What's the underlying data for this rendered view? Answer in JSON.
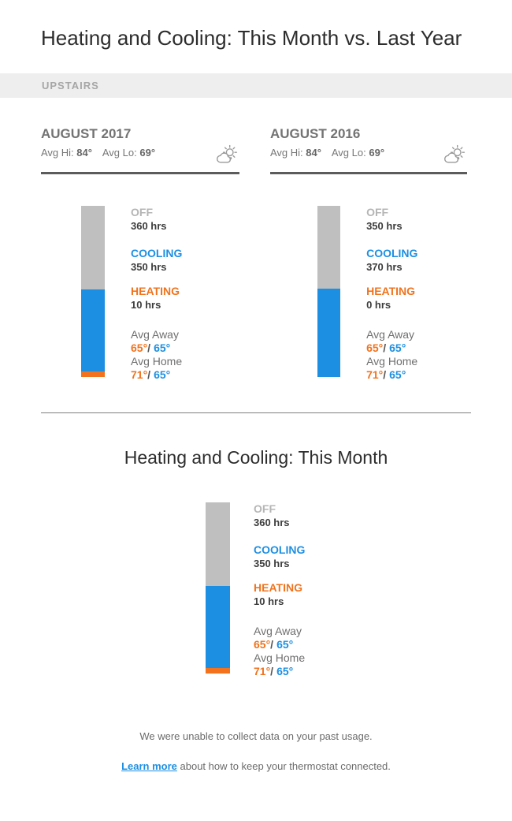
{
  "page": {
    "title": "Heating and Cooling: This Month vs. Last Year",
    "zone_label": "UPSTAIRS"
  },
  "colors": {
    "off": "#bfbfbf",
    "cooling": "#1d8fe2",
    "heating": "#f3721e",
    "link": "#1d8fe2"
  },
  "comparison": {
    "columns": [
      {
        "month": "AUGUST 2017",
        "avg_hi_label": "Avg Hi:",
        "avg_hi_value": "84°",
        "avg_lo_label": "Avg Lo:",
        "avg_lo_value": "69°",
        "weather_icon": "partly-cloudy-icon",
        "off_label": "OFF",
        "off_hours_text": "360 hrs",
        "cooling_label": "COOLING",
        "cooling_hours_text": "350 hrs",
        "heating_label": "HEATING",
        "heating_hours_text": "10 hrs",
        "avg_away_label": "Avg Away",
        "avg_away_heat": "65°",
        "avg_away_separator": "/",
        "avg_away_cool": "65°",
        "avg_home_label": "Avg Home",
        "avg_home_heat": "71°",
        "avg_home_separator": "/",
        "avg_home_cool": "65°"
      },
      {
        "month": "AUGUST 2016",
        "avg_hi_label": "Avg Hi:",
        "avg_hi_value": "84°",
        "avg_lo_label": "Avg Lo:",
        "avg_lo_value": "69°",
        "weather_icon": "partly-cloudy-icon",
        "off_label": "OFF",
        "off_hours_text": "350 hrs",
        "cooling_label": "COOLING",
        "cooling_hours_text": "370 hrs",
        "heating_label": "HEATING",
        "heating_hours_text": "0 hrs",
        "avg_away_label": "Avg Away",
        "avg_away_heat": "65°",
        "avg_away_separator": "/",
        "avg_away_cool": "65°",
        "avg_home_label": "Avg Home",
        "avg_home_heat": "71°",
        "avg_home_separator": "/",
        "avg_home_cool": "65°"
      }
    ]
  },
  "this_month": {
    "title": "Heating and Cooling: This Month",
    "off_label": "OFF",
    "off_hours_text": "360 hrs",
    "cooling_label": "COOLING",
    "cooling_hours_text": "350 hrs",
    "heating_label": "HEATING",
    "heating_hours_text": "10 hrs",
    "avg_away_label": "Avg Away",
    "avg_away_heat": "65°",
    "avg_away_separator": "/",
    "avg_away_cool": "65°",
    "avg_home_label": "Avg Home",
    "avg_home_heat": "71°",
    "avg_home_separator": "/",
    "avg_home_cool": "65°"
  },
  "footer": {
    "notice": "We were unable to collect data on your past usage.",
    "link_label": "Learn more",
    "link_tail": " about how to keep your thermostat connected."
  },
  "chart_data": [
    {
      "type": "bar",
      "stacked": true,
      "title": "AUGUST 2017",
      "zone": "UPSTAIRS",
      "units": "hours",
      "avg_outdoor_hi": 84,
      "avg_outdoor_lo": 69,
      "categories": [
        "OFF",
        "COOLING",
        "HEATING"
      ],
      "values": [
        360,
        350,
        10
      ],
      "hours": {
        "off": 360,
        "cooling": 350,
        "heating": 10
      },
      "avg_away_setpoints": {
        "heat": 65,
        "cool": 65
      },
      "avg_home_setpoints": {
        "heat": 71,
        "cool": 65
      }
    },
    {
      "type": "bar",
      "stacked": true,
      "title": "AUGUST 2016",
      "zone": "UPSTAIRS",
      "units": "hours",
      "avg_outdoor_hi": 84,
      "avg_outdoor_lo": 69,
      "categories": [
        "OFF",
        "COOLING",
        "HEATING"
      ],
      "values": [
        350,
        370,
        0
      ],
      "hours": {
        "off": 350,
        "cooling": 370,
        "heating": 0
      },
      "avg_away_setpoints": {
        "heat": 65,
        "cool": 65
      },
      "avg_home_setpoints": {
        "heat": 71,
        "cool": 65
      }
    },
    {
      "type": "bar",
      "stacked": true,
      "title": "Heating and Cooling: This Month",
      "units": "hours",
      "categories": [
        "OFF",
        "COOLING",
        "HEATING"
      ],
      "values": [
        360,
        350,
        10
      ],
      "hours": {
        "off": 360,
        "cooling": 350,
        "heating": 10
      },
      "avg_away_setpoints": {
        "heat": 65,
        "cool": 65
      },
      "avg_home_setpoints": {
        "heat": 71,
        "cool": 65
      }
    }
  ]
}
